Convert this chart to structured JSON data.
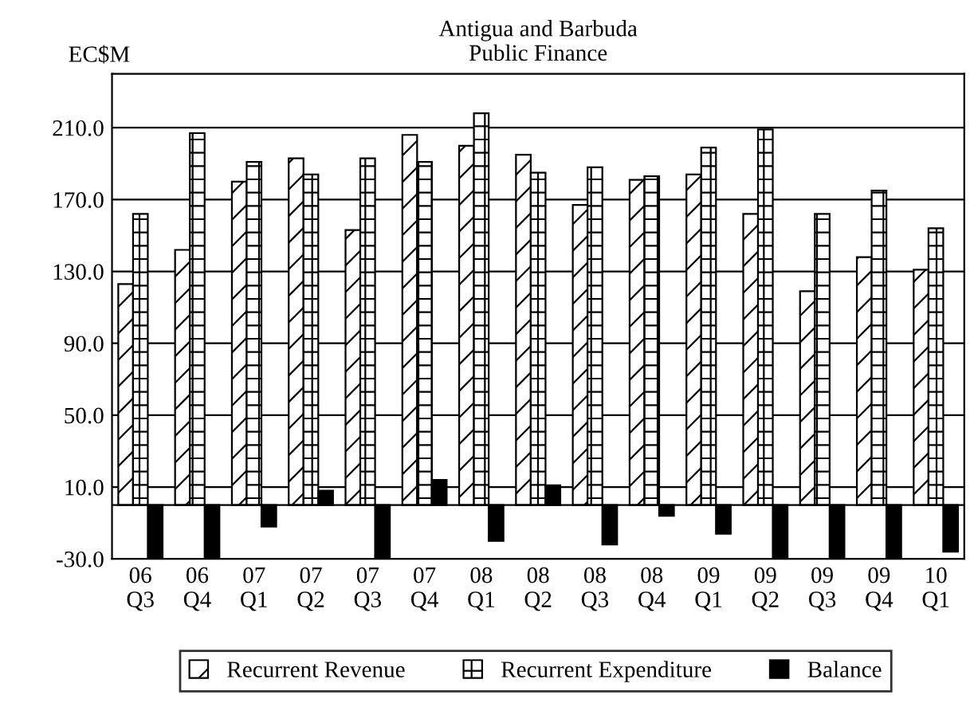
{
  "chart_data": {
    "type": "bar",
    "title": "Antigua and Barbuda\nPublic Finance",
    "ylabel": "EC$M",
    "categories": [
      "06\nQ3",
      "06\nQ4",
      "07\nQ1",
      "07\nQ2",
      "07\nQ3",
      "07\nQ4",
      "08\nQ1",
      "08\nQ2",
      "08\nQ3",
      "08\nQ4",
      "09\nQ1",
      "09\nQ2",
      "09\nQ3",
      "09\nQ4",
      "10\nQ1"
    ],
    "series": [
      {
        "name": "Recurrent Revenue",
        "color": "#000000",
        "values": [
          123,
          142,
          180,
          193,
          153,
          206,
          200,
          195,
          167,
          181,
          184,
          162,
          119,
          138,
          131
        ]
      },
      {
        "name": "Recurrent Expenditure",
        "color": "#000000",
        "values": [
          162,
          207,
          191,
          184,
          193,
          191,
          218,
          185,
          188,
          183,
          199,
          209,
          162,
          175,
          154
        ]
      },
      {
        "name": "Balance",
        "color": "#000000",
        "values": [
          -30,
          -30,
          -12,
          8,
          -30,
          14,
          -20,
          11,
          -22,
          -6,
          -16,
          -30,
          -30,
          -30,
          -26
        ]
      }
    ],
    "ylim": [
      -30,
      240
    ],
    "yticks": [
      {
        "value": -30,
        "label": "-30.0"
      },
      {
        "value": 10,
        "label": "10.0"
      },
      {
        "value": 50,
        "label": "50.0"
      },
      {
        "value": 90,
        "label": "90.0"
      },
      {
        "value": 130,
        "label": "130.0"
      },
      {
        "value": 170,
        "label": "170.0"
      },
      {
        "value": 210,
        "label": "210.0"
      }
    ],
    "grid": "y",
    "legend": "bottom"
  }
}
